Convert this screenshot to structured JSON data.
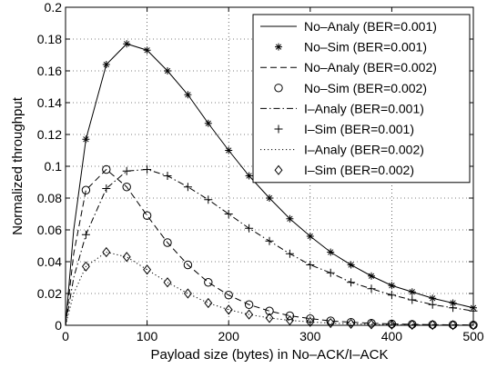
{
  "chart_data": {
    "type": "line",
    "title": "",
    "xlabel": "Payload size (bytes) in No–ACK/I–ACK",
    "ylabel": "Normalized throughput",
    "xlim": [
      0,
      500
    ],
    "ylim": [
      0,
      0.2
    ],
    "xticks": [
      "0",
      "100",
      "200",
      "300",
      "400",
      "500"
    ],
    "yticks": [
      "0",
      "0.02",
      "0.04",
      "0.06",
      "0.08",
      "0.1",
      "0.12",
      "0.14",
      "0.16",
      "0.18",
      "0.2"
    ],
    "grid": "dotted",
    "legend_position": "top-right",
    "series": [
      {
        "name": "No–Analy (BER=0.001)",
        "style": "solid",
        "marker": "none",
        "color": "#000000",
        "x": [
          0,
          10,
          25,
          50,
          75,
          100,
          125,
          150,
          175,
          200,
          225,
          250,
          275,
          300,
          325,
          350,
          375,
          400,
          425,
          450,
          475,
          500
        ],
        "y": [
          0,
          0.06,
          0.117,
          0.164,
          0.177,
          0.173,
          0.16,
          0.145,
          0.127,
          0.11,
          0.094,
          0.08,
          0.067,
          0.056,
          0.046,
          0.038,
          0.031,
          0.025,
          0.021,
          0.017,
          0.014,
          0.011
        ]
      },
      {
        "name": "No–Sim (BER=0.001)",
        "style": "none",
        "marker": "asterisk",
        "color": "#000000",
        "x": [
          25,
          50,
          75,
          100,
          125,
          150,
          175,
          200,
          225,
          250,
          275,
          300,
          325,
          350,
          375,
          400,
          425,
          450,
          475,
          500
        ],
        "y": [
          0.117,
          0.164,
          0.177,
          0.173,
          0.16,
          0.145,
          0.127,
          0.11,
          0.094,
          0.08,
          0.067,
          0.056,
          0.046,
          0.038,
          0.031,
          0.025,
          0.021,
          0.017,
          0.014,
          0.011
        ]
      },
      {
        "name": "No–Analy (BER=0.002)",
        "style": "dashed",
        "marker": "none",
        "color": "#000000",
        "x": [
          0,
          10,
          25,
          50,
          75,
          100,
          125,
          150,
          175,
          200,
          225,
          250,
          275,
          300,
          325,
          350,
          375,
          400,
          425,
          450,
          475,
          500
        ],
        "y": [
          0,
          0.045,
          0.085,
          0.098,
          0.087,
          0.069,
          0.052,
          0.038,
          0.027,
          0.019,
          0.013,
          0.009,
          0.006,
          0.0042,
          0.0028,
          0.0019,
          0.0013,
          0.0009,
          0.0006,
          0.0004,
          0.0003,
          0.0002
        ]
      },
      {
        "name": "No–Sim (BER=0.002)",
        "style": "none",
        "marker": "circle",
        "color": "#000000",
        "x": [
          25,
          50,
          75,
          100,
          125,
          150,
          175,
          200,
          225,
          250,
          275,
          300,
          325,
          350,
          375,
          400,
          425,
          450,
          475,
          500
        ],
        "y": [
          0.085,
          0.098,
          0.087,
          0.069,
          0.052,
          0.038,
          0.027,
          0.019,
          0.013,
          0.009,
          0.006,
          0.0042,
          0.0028,
          0.0019,
          0.0013,
          0.0009,
          0.0006,
          0.0004,
          0.0003,
          0.0002
        ]
      },
      {
        "name": "I–Analy (BER=0.001)",
        "style": "dashdot",
        "marker": "none",
        "color": "#000000",
        "x": [
          0,
          10,
          25,
          50,
          75,
          100,
          125,
          150,
          175,
          200,
          225,
          250,
          275,
          300,
          325,
          350,
          375,
          400,
          425,
          450,
          475,
          500
        ],
        "y": [
          0,
          0.03,
          0.057,
          0.086,
          0.097,
          0.098,
          0.094,
          0.087,
          0.079,
          0.07,
          0.061,
          0.053,
          0.045,
          0.038,
          0.033,
          0.027,
          0.023,
          0.019,
          0.016,
          0.013,
          0.011,
          0.009
        ]
      },
      {
        "name": "I–Sim (BER=0.001)",
        "style": "none",
        "marker": "plus",
        "color": "#000000",
        "x": [
          25,
          50,
          75,
          100,
          125,
          150,
          175,
          200,
          225,
          250,
          275,
          300,
          325,
          350,
          375,
          400,
          425,
          450,
          475,
          500
        ],
        "y": [
          0.057,
          0.086,
          0.097,
          0.098,
          0.094,
          0.087,
          0.079,
          0.07,
          0.061,
          0.053,
          0.045,
          0.038,
          0.033,
          0.027,
          0.023,
          0.019,
          0.016,
          0.013,
          0.011,
          0.009
        ]
      },
      {
        "name": "I–Analy (BER=0.002)",
        "style": "dotted",
        "marker": "none",
        "color": "#000000",
        "x": [
          0,
          10,
          25,
          50,
          75,
          100,
          125,
          150,
          175,
          200,
          225,
          250,
          275,
          300,
          325,
          350,
          375,
          400,
          425,
          450,
          475,
          500
        ],
        "y": [
          0,
          0.02,
          0.037,
          0.046,
          0.043,
          0.035,
          0.027,
          0.02,
          0.014,
          0.0098,
          0.0068,
          0.0046,
          0.0031,
          0.0021,
          0.0014,
          0.0009,
          0.0006,
          0.0004,
          0.0003,
          0.0002,
          0.0001,
          0.0001
        ]
      },
      {
        "name": "I–Sim (BER=0.002)",
        "style": "none",
        "marker": "diamond",
        "color": "#000000",
        "x": [
          25,
          50,
          75,
          100,
          125,
          150,
          175,
          200,
          225,
          250,
          275,
          300,
          325,
          350,
          375,
          400,
          425,
          450,
          475,
          500
        ],
        "y": [
          0.037,
          0.046,
          0.043,
          0.035,
          0.027,
          0.02,
          0.014,
          0.0098,
          0.0068,
          0.0046,
          0.0031,
          0.0021,
          0.0014,
          0.0009,
          0.0006,
          0.0004,
          0.0003,
          0.0002,
          0.0001,
          0.0001
        ]
      }
    ]
  }
}
